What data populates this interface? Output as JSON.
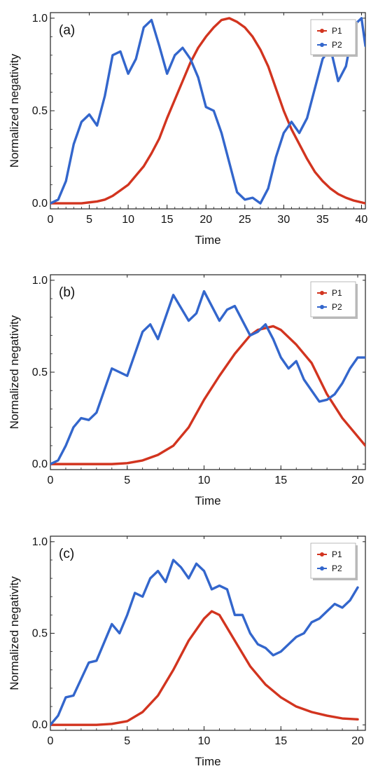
{
  "chart_data": [
    {
      "type": "line",
      "panel_label": "(a)",
      "xlabel": "Time",
      "ylabel": "Normalized negativity",
      "xlim": [
        0,
        40.5
      ],
      "ylim": [
        -0.03,
        1.03
      ],
      "xticks": [
        0,
        5,
        10,
        15,
        20,
        25,
        30,
        35,
        40
      ],
      "yticks": [
        0.0,
        0.5,
        1.0
      ],
      "ytick_labels": [
        "0.0",
        "0.5",
        "1.0"
      ],
      "legend_position": "top-right",
      "series": [
        {
          "name": "P1",
          "color": "#d2341f",
          "x": [
            0,
            4,
            5,
            6,
            7,
            8,
            9,
            10,
            11,
            12,
            13,
            14,
            15,
            16,
            17,
            18,
            19,
            20,
            21,
            22,
            23,
            24,
            25,
            26,
            27,
            28,
            29,
            30,
            31,
            32,
            33,
            34,
            35,
            36,
            37,
            38,
            39,
            40,
            40.5
          ],
          "y": [
            0.0,
            0.0,
            0.005,
            0.01,
            0.02,
            0.04,
            0.07,
            0.1,
            0.15,
            0.2,
            0.27,
            0.35,
            0.46,
            0.56,
            0.66,
            0.76,
            0.84,
            0.9,
            0.95,
            0.99,
            1.0,
            0.98,
            0.95,
            0.9,
            0.83,
            0.74,
            0.62,
            0.5,
            0.4,
            0.32,
            0.24,
            0.17,
            0.12,
            0.08,
            0.05,
            0.03,
            0.015,
            0.005,
            0.0
          ]
        },
        {
          "name": "P2",
          "color": "#3366cc",
          "x": [
            0,
            1,
            2,
            3,
            4,
            5,
            6,
            7,
            8,
            9,
            10,
            11,
            12,
            13,
            14,
            15,
            16,
            17,
            18,
            19,
            20,
            21,
            22,
            23,
            24,
            25,
            26,
            27,
            28,
            29,
            30,
            31,
            32,
            33,
            34,
            35,
            36,
            37,
            38,
            39,
            40,
            40.5
          ],
          "y": [
            0.0,
            0.02,
            0.12,
            0.32,
            0.44,
            0.48,
            0.42,
            0.58,
            0.8,
            0.82,
            0.7,
            0.78,
            0.95,
            0.99,
            0.85,
            0.7,
            0.8,
            0.84,
            0.78,
            0.68,
            0.52,
            0.5,
            0.38,
            0.22,
            0.06,
            0.02,
            0.03,
            0.0,
            0.08,
            0.25,
            0.38,
            0.44,
            0.38,
            0.46,
            0.62,
            0.78,
            0.84,
            0.66,
            0.74,
            0.96,
            1.0,
            0.85
          ]
        }
      ]
    },
    {
      "type": "line",
      "panel_label": "(b)",
      "xlabel": "Time",
      "ylabel": "Normalized negativity",
      "xlim": [
        0,
        20.5
      ],
      "ylim": [
        -0.03,
        1.03
      ],
      "xticks": [
        0,
        5,
        10,
        15,
        20
      ],
      "yticks": [
        0.0,
        0.5,
        1.0
      ],
      "ytick_labels": [
        "0.0",
        "0.5",
        "1.0"
      ],
      "legend_position": "top-right",
      "series": [
        {
          "name": "P1",
          "color": "#d2341f",
          "x": [
            0,
            4,
            5,
            6,
            7,
            8,
            9,
            10,
            11,
            12,
            13,
            13.5,
            14,
            14.5,
            15,
            16,
            17,
            18,
            19,
            20,
            20.5
          ],
          "y": [
            0.0,
            0.0,
            0.005,
            0.02,
            0.05,
            0.1,
            0.2,
            0.35,
            0.48,
            0.6,
            0.7,
            0.73,
            0.74,
            0.75,
            0.73,
            0.65,
            0.55,
            0.38,
            0.25,
            0.15,
            0.1
          ]
        },
        {
          "name": "P2",
          "color": "#3366cc",
          "x": [
            0,
            0.5,
            1,
            1.5,
            2,
            2.5,
            3,
            3.5,
            4,
            4.5,
            5,
            5.5,
            6,
            6.5,
            7,
            7.5,
            8,
            8.5,
            9,
            9.5,
            10,
            10.5,
            11,
            11.5,
            12,
            12.5,
            13,
            13.5,
            14,
            14.5,
            15,
            15.5,
            16,
            16.5,
            17,
            17.5,
            18,
            18.5,
            19,
            19.5,
            20,
            20.5
          ],
          "y": [
            0.0,
            0.02,
            0.1,
            0.2,
            0.25,
            0.24,
            0.28,
            0.4,
            0.52,
            0.5,
            0.48,
            0.6,
            0.72,
            0.76,
            0.68,
            0.8,
            0.92,
            0.85,
            0.78,
            0.82,
            0.94,
            0.86,
            0.78,
            0.84,
            0.86,
            0.78,
            0.7,
            0.72,
            0.76,
            0.68,
            0.58,
            0.52,
            0.56,
            0.46,
            0.4,
            0.34,
            0.35,
            0.38,
            0.44,
            0.52,
            0.58,
            0.58
          ]
        }
      ]
    },
    {
      "type": "line",
      "panel_label": "(c)",
      "xlabel": "Time",
      "ylabel": "Normalized negativity",
      "xlim": [
        0,
        20.5
      ],
      "ylim": [
        -0.03,
        1.03
      ],
      "xticks": [
        0,
        5,
        10,
        15,
        20
      ],
      "yticks": [
        0.0,
        0.5,
        1.0
      ],
      "ytick_labels": [
        "0.0",
        "0.5",
        "1.0"
      ],
      "legend_position": "top-right",
      "series": [
        {
          "name": "P1",
          "color": "#d2341f",
          "x": [
            0,
            3,
            4,
            5,
            6,
            7,
            8,
            9,
            10,
            10.5,
            11,
            12,
            13,
            14,
            15,
            16,
            17,
            18,
            19,
            20
          ],
          "y": [
            0.0,
            0.0,
            0.005,
            0.02,
            0.07,
            0.16,
            0.3,
            0.46,
            0.58,
            0.62,
            0.6,
            0.46,
            0.32,
            0.22,
            0.15,
            0.1,
            0.07,
            0.05,
            0.035,
            0.03
          ]
        },
        {
          "name": "P2",
          "color": "#3366cc",
          "x": [
            0,
            0.5,
            1,
            1.5,
            2,
            2.5,
            3,
            3.5,
            4,
            4.5,
            5,
            5.5,
            6,
            6.5,
            7,
            7.5,
            8,
            8.5,
            9,
            9.5,
            10,
            10.5,
            11,
            11.5,
            12,
            12.5,
            13,
            13.5,
            14,
            14.5,
            15,
            15.5,
            16,
            16.5,
            17,
            17.5,
            18,
            18.5,
            19,
            19.5,
            20
          ],
          "y": [
            0.0,
            0.05,
            0.15,
            0.16,
            0.25,
            0.34,
            0.35,
            0.45,
            0.55,
            0.5,
            0.6,
            0.72,
            0.7,
            0.8,
            0.84,
            0.78,
            0.9,
            0.86,
            0.8,
            0.88,
            0.84,
            0.74,
            0.76,
            0.74,
            0.6,
            0.6,
            0.5,
            0.44,
            0.42,
            0.38,
            0.4,
            0.44,
            0.48,
            0.5,
            0.56,
            0.58,
            0.62,
            0.66,
            0.64,
            0.68,
            0.75
          ]
        }
      ]
    }
  ]
}
